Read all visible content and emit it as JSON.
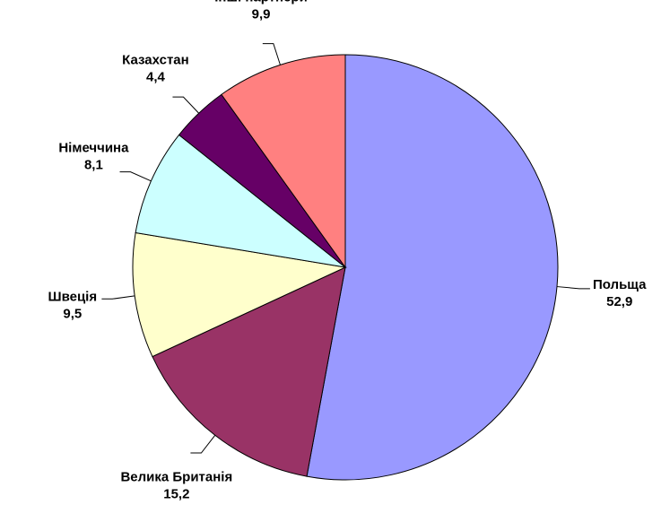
{
  "chart_data": {
    "type": "pie",
    "categories": [
      "Польща",
      "Велика Британія",
      "Швеція",
      "Німеччина",
      "Казахстан",
      "Інші партнери"
    ],
    "values": [
      52.9,
      15.2,
      9.5,
      8.1,
      4.4,
      9.9
    ],
    "value_labels": [
      "52,9",
      "15,2",
      "9,5",
      "8,1",
      "4,4",
      "9,9"
    ],
    "colors": [
      "#9999ff",
      "#993366",
      "#ffffcc",
      "#ccffff",
      "#660066",
      "#ff8080"
    ]
  }
}
